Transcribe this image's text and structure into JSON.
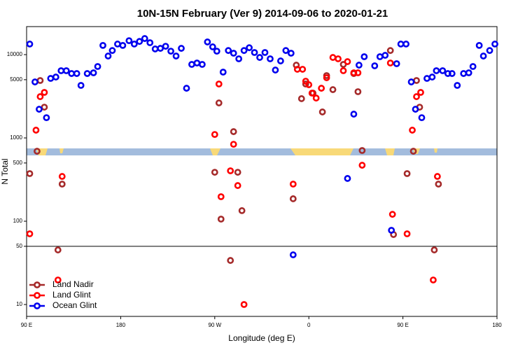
{
  "chart_data": {
    "type": "scatter",
    "title": "10N-15N February (Ver 9)   2014-09-06 to 2020-01-21",
    "xlabel": "Longitude (deg E)",
    "ylabel": "N Total",
    "yscale": "log",
    "legend": "lower left",
    "xlim": [
      90,
      540
    ],
    "ylim": [
      7.2,
      21700
    ],
    "xticks": [
      {
        "value": 90,
        "label": "90 E"
      },
      180,
      {
        "value": 270,
        "label": "90 W"
      },
      {
        "value": 360,
        "label": "0"
      },
      {
        "value": 450,
        "label": "90 E"
      },
      {
        "value": 540,
        "label": "180"
      }
    ],
    "yticks": [
      10,
      50,
      100,
      500,
      1000,
      5000,
      10000
    ],
    "series": [
      {
        "name": "Land Nadir",
        "color": "#a52a2a",
        "x": [
          93,
          100,
          103,
          107,
          120,
          124,
          270,
          274,
          276,
          285,
          288,
          292,
          296,
          345,
          348,
          353,
          357,
          364,
          373,
          377,
          383,
          393,
          403,
          407,
          411,
          438,
          441,
          454,
          460,
          463,
          466,
          480,
          484
        ],
        "values": [
          373,
          692,
          4890,
          2340,
          45.2,
          279,
          387,
          2630,
          106,
          33.8,
          1190,
          387,
          134,
          186,
          7480,
          2960,
          4440,
          3450,
          2050,
          5600,
          3800,
          7630,
          5930,
          3590,
          706,
          11200,
          69.2,
          373,
          692,
          4890,
          2340,
          45.2,
          279
        ]
      },
      {
        "name": "Land Glint",
        "color": "#ff0000",
        "x": [
          93,
          99,
          103,
          107,
          120,
          124,
          270,
          274,
          276,
          285,
          288,
          292,
          298,
          345,
          349,
          354,
          357,
          360,
          363,
          367,
          372,
          377,
          383,
          388,
          393,
          397,
          403,
          407,
          411,
          438,
          440,
          454,
          459,
          463,
          467,
          479,
          483
        ],
        "values": [
          70.6,
          1240,
          3130,
          3520,
          19.7,
          345,
          1100,
          4440,
          197,
          403,
          839,
          268,
          10,
          279,
          6670,
          6670,
          4800,
          4350,
          3450,
          3010,
          3950,
          5280,
          9250,
          8910,
          6410,
          8240,
          6050,
          6050,
          470,
          7930,
          121,
          70.6,
          1240,
          3130,
          3520,
          19.7,
          345
        ]
      },
      {
        "name": "Ocean Glint",
        "color": "#0000ee",
        "x": [
          93,
          98,
          102,
          109,
          113,
          118,
          123,
          128,
          133,
          138,
          142,
          148,
          154,
          158,
          163,
          168,
          172,
          177,
          182,
          188,
          193,
          198,
          203,
          208,
          213,
          218,
          223,
          228,
          233,
          238,
          243,
          248,
          253,
          258,
          263,
          268,
          272,
          278,
          283,
          288,
          293,
          298,
          303,
          308,
          313,
          318,
          323,
          328,
          333,
          338,
          343,
          345,
          397,
          403,
          408,
          413,
          423,
          428,
          433,
          439,
          444,
          448,
          453,
          458,
          462,
          468,
          473,
          478,
          482,
          488,
          493,
          497,
          502,
          508,
          513,
          517,
          523,
          527,
          533,
          538
        ],
        "values": [
          13400,
          4700,
          2210,
          1750,
          5180,
          5380,
          6410,
          6410,
          5930,
          5930,
          4270,
          5930,
          6050,
          7200,
          12900,
          9620,
          11200,
          13400,
          12900,
          14700,
          13400,
          14400,
          15600,
          13900,
          11700,
          11900,
          12600,
          11000,
          9620,
          11900,
          3950,
          7630,
          7930,
          7630,
          14200,
          12400,
          11000,
          6170,
          11200,
          10400,
          8910,
          11200,
          12100,
          10600,
          9250,
          10600,
          8910,
          6530,
          8400,
          11200,
          10400,
          39.5,
          326,
          1930,
          7480,
          9440,
          7340,
          9440,
          9810,
          77.8,
          7780,
          13400,
          13400,
          4700,
          2210,
          1750,
          5180,
          5380,
          6410,
          6410,
          5930,
          5930,
          4270,
          5930,
          6050,
          7200,
          12900,
          9620,
          11200,
          13400
        ]
      }
    ]
  }
}
